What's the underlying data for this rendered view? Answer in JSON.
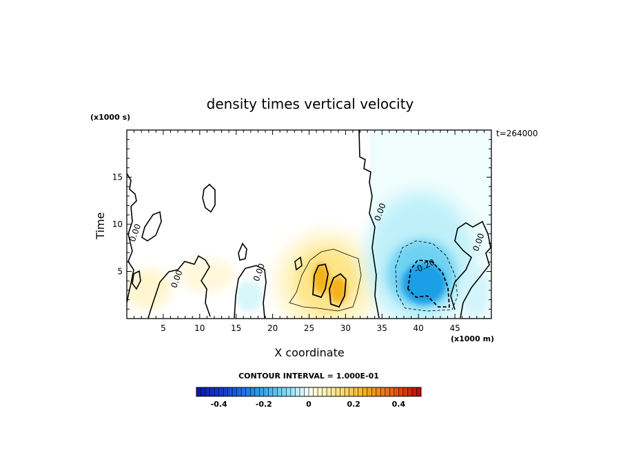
{
  "chart_data": {
    "type": "heatmap",
    "title": "density times vertical velocity",
    "xlabel": "X coordinate",
    "ylabel": "Time",
    "x_unit": "(x1000 m)",
    "y_unit": "(x1000 s)",
    "timestamp": "t=264000",
    "xlim": [
      0,
      50
    ],
    "ylim": [
      0,
      20
    ],
    "x_ticks": [
      "5",
      "10",
      "15",
      "20",
      "25",
      "30",
      "35",
      "40",
      "45"
    ],
    "y_ticks": [
      "5",
      "10",
      "15"
    ],
    "contour_interval_label": "CONTOUR INTERVAL = 1.000E-01",
    "contour_labels": [
      {
        "text": "0.00",
        "x": 1.5,
        "y": 9.0
      },
      {
        "text": "0.00",
        "x": 7.2,
        "y": 4.1
      },
      {
        "text": "0.00",
        "x": 18.5,
        "y": 4.8
      },
      {
        "text": "0.00",
        "x": 35.1,
        "y": 11.2
      },
      {
        "text": "-0.20",
        "x": 41.0,
        "y": 5.3
      },
      {
        "text": "0.00",
        "x": 48.6,
        "y": 8.0
      }
    ],
    "features": [
      {
        "kind": "positive-max",
        "x": 28.0,
        "y": 3.5,
        "value": 0.3
      },
      {
        "kind": "positive-max",
        "x": 29.5,
        "y": 3.0,
        "value": 0.3
      },
      {
        "kind": "negative-min",
        "x": 41.0,
        "y": 3.0,
        "value": -0.35
      }
    ],
    "colorbar": {
      "min": -0.5,
      "max": 0.5,
      "tick_labels": [
        "-0.4",
        "-0.2",
        "0",
        "0.2",
        "0.4"
      ],
      "tick_values": [
        -0.4,
        -0.2,
        0,
        0.2,
        0.4
      ]
    },
    "colors": {
      "strong_negative": "#0b16a8",
      "negative": "#1e9fe6",
      "weak_negative": "#d8f7fb",
      "zero": "#ffffff",
      "weak_positive": "#fff6c8",
      "positive": "#f3b21c",
      "strong_positive": "#c80000"
    }
  }
}
